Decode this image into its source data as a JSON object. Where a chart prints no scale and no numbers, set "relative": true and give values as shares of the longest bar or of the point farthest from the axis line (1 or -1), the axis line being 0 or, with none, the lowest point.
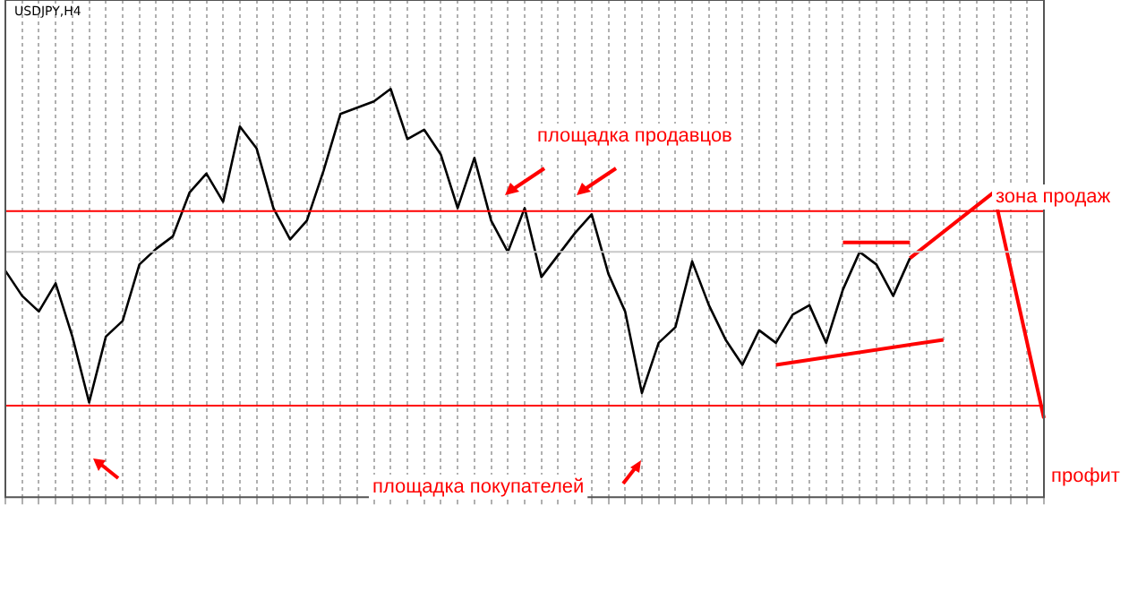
{
  "chart_data": {
    "type": "line",
    "title": "USDJPY,H4",
    "relative": true,
    "grid": "x",
    "legend": false,
    "marker": "none",
    "categories": [
      null,
      null,
      null,
      null,
      null,
      null,
      null,
      null,
      null,
      null,
      null,
      null,
      null,
      null,
      null,
      null,
      null,
      null,
      null,
      null,
      null,
      null,
      null,
      null,
      null,
      null,
      null,
      null,
      null,
      null,
      null,
      null,
      null,
      null,
      null,
      null,
      null,
      null,
      null,
      null,
      null,
      null,
      null,
      null,
      null,
      null,
      null,
      null,
      null,
      null,
      null,
      null,
      null,
      null,
      null,
      null,
      null,
      null,
      null,
      null,
      null,
      null,
      null
    ],
    "series": [
      {
        "color": "#000000",
        "values": [
          0.42,
          0.34,
          0.29,
          0.38,
          0.21,
          0,
          0.21,
          0.26,
          0.44,
          0.49,
          0.53,
          0.67,
          0.73,
          0.64,
          0.88,
          0.81,
          0.62,
          0.52,
          0.58,
          0.74,
          0.92,
          0.94,
          0.96,
          1,
          0.84,
          0.87,
          0.79,
          0.62,
          0.78,
          0.58,
          0.48,
          0.62,
          0.4,
          0.47,
          0.54,
          0.6,
          0.41,
          0.29,
          0.03,
          0.19,
          0.24,
          0.45,
          0.31,
          0.2,
          0.12,
          0.23,
          0.19,
          0.28,
          0.31,
          0.19,
          0.36,
          0.48,
          0.44,
          0.34,
          0.46,
          null,
          null,
          null,
          null,
          null,
          null,
          null,
          null
        ]
      },
      {
        "color": "#ff0000",
        "values": [
          null,
          null,
          null,
          null,
          null,
          null,
          null,
          null,
          null,
          null,
          null,
          null,
          null,
          null,
          null,
          null,
          null,
          null,
          null,
          null,
          null,
          null,
          null,
          null,
          null,
          null,
          null,
          null,
          null,
          null,
          null,
          null,
          null,
          null,
          null,
          null,
          null,
          null,
          null,
          null,
          null,
          null,
          null,
          null,
          null,
          null,
          null,
          null,
          null,
          null,
          null,
          null,
          null,
          null,
          0.46,
          null,
          null,
          null,
          null,
          0.67,
          null,
          null,
          -0.05
        ]
      },
      {
        "color": "#ff0000",
        "values": [
          null,
          null,
          null,
          null,
          null,
          null,
          null,
          null,
          null,
          null,
          null,
          null,
          null,
          null,
          null,
          null,
          null,
          null,
          null,
          null,
          null,
          null,
          null,
          null,
          null,
          null,
          null,
          null,
          null,
          null,
          null,
          null,
          null,
          null,
          null,
          null,
          null,
          null,
          null,
          null,
          null,
          null,
          null,
          null,
          null,
          null,
          0.12,
          null,
          null,
          null,
          null,
          null,
          null,
          null,
          null,
          null,
          0.2,
          null,
          null,
          null,
          null,
          null,
          null
        ]
      },
      {
        "color": "#ff0000",
        "values": [
          null,
          null,
          null,
          null,
          null,
          null,
          null,
          null,
          null,
          null,
          null,
          null,
          null,
          null,
          null,
          null,
          null,
          null,
          null,
          null,
          null,
          null,
          null,
          null,
          null,
          null,
          null,
          null,
          null,
          null,
          null,
          null,
          null,
          null,
          null,
          null,
          null,
          null,
          null,
          null,
          null,
          null,
          null,
          null,
          null,
          null,
          null,
          null,
          null,
          null,
          0.51,
          null,
          null,
          null,
          0.51,
          null,
          null,
          null,
          null,
          null,
          null,
          null,
          null
        ]
      }
    ],
    "ref_lines": [
      {
        "axis": "y",
        "value": 0.61,
        "color": "#ff0000"
      },
      {
        "axis": "y",
        "value": -0.01,
        "color": "#ff0000"
      },
      {
        "axis": "y",
        "value": 0.48,
        "color": "#c8c8c8"
      }
    ],
    "annotations": [
      "площадка продавцов",
      "площадка покупателей",
      "зона продаж",
      "профит"
    ]
  }
}
